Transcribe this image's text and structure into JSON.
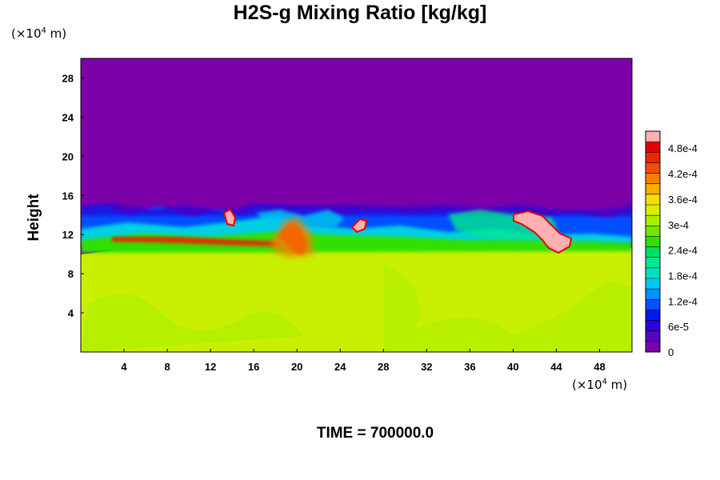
{
  "chart_data": {
    "type": "heatmap",
    "title": "H2S-g Mixing Ratio [kg/kg]",
    "xlabel_unit": {
      "prefix": "(×10",
      "exp": "4",
      "suffix": " m)"
    },
    "ylabel": "Height",
    "ylabel_unit": {
      "prefix": "(×10",
      "exp": "4",
      "suffix": " m)"
    },
    "footer": "TIME = 700000.0",
    "xlim": [
      0,
      51
    ],
    "ylim": [
      0,
      30
    ],
    "x_ticks": [
      4,
      8,
      12,
      16,
      20,
      24,
      28,
      32,
      36,
      40,
      44,
      48
    ],
    "y_ticks": [
      4,
      8,
      12,
      16,
      20,
      24,
      28
    ],
    "colorbar": {
      "vmin": 0,
      "vmax": 0.00052,
      "tick_values": [
        0,
        6e-05,
        0.00012,
        0.00018,
        0.00024,
        0.0003,
        0.00036,
        0.00042,
        0.00048
      ],
      "tick_labels": [
        "0",
        "6e-5",
        "1.2e-4",
        "1.8e-4",
        "2.4e-4",
        "3e-4",
        "3.6e-4",
        "4.2e-4",
        "4.8e-4"
      ],
      "colors": [
        "#7b00a8",
        "#5a00c0",
        "#2c00d8",
        "#0018f0",
        "#0050ff",
        "#0090ff",
        "#00c8f0",
        "#00e0c0",
        "#00e890",
        "#00e060",
        "#30e000",
        "#70e800",
        "#a8f000",
        "#d8f000",
        "#f0e000",
        "#f8b000",
        "#f88000",
        "#f05000",
        "#e82800",
        "#e80000",
        "#ffb0b0"
      ]
    },
    "regions": [
      {
        "name": "upper layer",
        "height_range": [
          15,
          30
        ],
        "value": 0
      },
      {
        "name": "lower layer",
        "height_range": [
          0,
          11
        ],
        "value": 0.00036
      },
      {
        "name": "red streak",
        "x_range": [
          3,
          20
        ],
        "height": 11.5,
        "value": 0.00045
      },
      {
        "name": "red plume",
        "x": 20,
        "height_range": [
          10,
          13
        ],
        "value": 0.00048
      },
      {
        "name": "high patch",
        "x_range": [
          40,
          45
        ],
        "height_range": [
          10,
          14
        ],
        "value": 0.0005
      },
      {
        "name": "small patch",
        "x": 13.5,
        "height": 13.5,
        "value": 0.0005
      },
      {
        "name": "small patch",
        "x": 26,
        "height": 12.8,
        "value": 0.0005
      }
    ]
  }
}
